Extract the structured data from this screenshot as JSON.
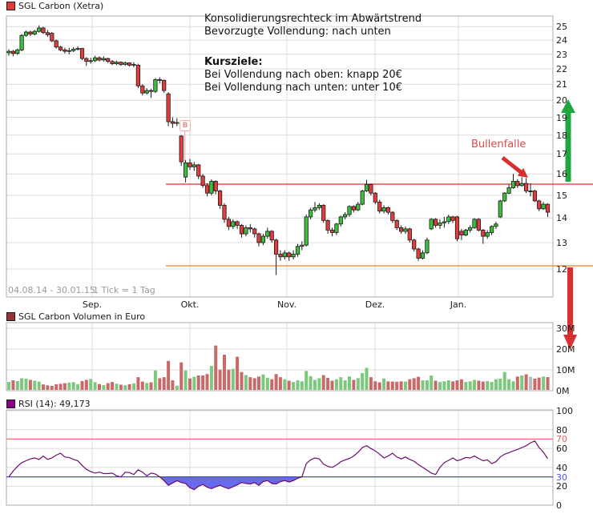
{
  "window": {
    "title": "SGL Carbon (Xetra)"
  },
  "price_panel": {
    "legend_label": "SGL Carbon (Xetra)",
    "annotation": {
      "line1": "Konsolidierungsrechteck im Abwärtstrend",
      "line2": "Bevorzugte Vollendung: nach unten",
      "heading": "Kursziele:",
      "target_up": "Bei Vollendung nach oben: knapp 20€",
      "target_down": "Bei Vollendung nach unten: unter 10€"
    },
    "bullenfalle_label": "Bullenfalle",
    "b_marker_label": "B",
    "date_range": "04.08.14 - 30.01.15",
    "tick_info": "1 Tick = 1 Tag",
    "y_ticks": [
      25,
      24,
      23,
      22,
      21,
      20,
      19,
      18,
      17,
      16,
      15,
      14,
      13,
      12
    ]
  },
  "volume_panel": {
    "legend_label": "SGL Carbon Volumen in Euro",
    "y_ticks": [
      {
        "label": "30M",
        "value": 30
      },
      {
        "label": "20M",
        "value": 20
      },
      {
        "label": "10M",
        "value": 10
      },
      {
        "label": "0M",
        "value": 0
      }
    ]
  },
  "rsi_panel": {
    "legend_label": "RSI (14): 49,173",
    "y_ticks": [
      100,
      80,
      70,
      60,
      40,
      30,
      20,
      0
    ]
  },
  "x_axis": {
    "months": [
      "Sep.",
      "Okt.",
      "Nov.",
      "Dez.",
      "Jan."
    ]
  },
  "colors": {
    "candle_up": "#3DBE3D",
    "candle_down": "#E23D3D",
    "candle_border": "#1a1a1a",
    "wick": "#1a1a1a",
    "vol_up": "#7CC87C",
    "vol_down": "#C96A6A",
    "vol_neutral": "#BBBBBB",
    "legend_price_swatch": "#E13B3B",
    "legend_vol_swatch": "#993333",
    "legend_rsi_swatch": "#8B008B",
    "rsi_line": "#6B0D6B",
    "rsi_fill": "#6A6AEE",
    "rsi_overbought_line": "#EE7070",
    "rsi_oversold_line": "#4747E0",
    "rsi_tick_70": "#E86060",
    "rsi_tick_30": "#5050E8",
    "resistance_line": "#D93030",
    "support_line": "#F08020",
    "arrow_up": "#1EA73E",
    "arrow_down": "#D83030",
    "annotation_arrow": "#D83030",
    "grid": "#DCDCDC",
    "panel_border": "#ADADAD",
    "b_marker_pink": "#EFA9A9"
  },
  "chart_data": {
    "type": "candlestick+volume+rsi",
    "instrument": "SGL Carbon (Xetra)",
    "period": {
      "start": "04.08.14",
      "end": "30.01.15",
      "interval": "1 Tag"
    },
    "price": {
      "scale": "log",
      "ylim": [
        11.5,
        25.5
      ],
      "resistance_level": 15.5,
      "support_level": 12.1,
      "low_extreme": 11.78,
      "ohlcv_order": [
        "open",
        "high",
        "low",
        "close",
        "volume_mio_eur"
      ],
      "candles": [
        [
          23.1,
          23.35,
          22.9,
          23.2,
          4.2
        ],
        [
          23.2,
          23.3,
          22.85,
          23.05,
          5.0
        ],
        [
          23.05,
          23.4,
          22.95,
          23.3,
          4.6
        ],
        [
          23.3,
          24.45,
          23.2,
          24.35,
          6.0
        ],
        [
          24.35,
          24.7,
          24.25,
          24.6,
          5.8
        ],
        [
          24.6,
          24.7,
          24.3,
          24.45,
          5.2
        ],
        [
          24.45,
          24.75,
          24.35,
          24.65,
          4.8
        ],
        [
          24.65,
          25.1,
          24.55,
          24.9,
          4.4
        ],
        [
          24.9,
          25.0,
          24.45,
          24.55,
          3.0
        ],
        [
          24.55,
          24.75,
          24.25,
          24.4,
          2.6
        ],
        [
          24.5,
          24.6,
          23.85,
          23.95,
          2.3
        ],
        [
          23.95,
          24.05,
          23.4,
          23.5,
          3.1
        ],
        [
          23.5,
          23.6,
          23.2,
          23.3,
          3.3
        ],
        [
          23.3,
          23.45,
          23.05,
          23.2,
          3.6
        ],
        [
          23.2,
          23.45,
          23.0,
          23.25,
          3.9
        ],
        [
          23.25,
          23.5,
          23.15,
          23.35,
          4.1
        ],
        [
          23.35,
          23.55,
          23.25,
          23.4,
          3.2
        ],
        [
          23.4,
          23.45,
          22.6,
          22.7,
          4.6
        ],
        [
          22.7,
          22.8,
          22.2,
          22.5,
          5.2
        ],
        [
          22.5,
          22.75,
          22.35,
          22.55,
          5.6
        ],
        [
          22.55,
          22.9,
          22.45,
          22.75,
          4.1
        ],
        [
          22.75,
          22.85,
          22.5,
          22.6,
          3.2
        ],
        [
          22.6,
          22.85,
          22.5,
          22.7,
          2.7
        ],
        [
          22.7,
          22.75,
          22.4,
          22.5,
          3.6
        ],
        [
          22.5,
          22.6,
          22.25,
          22.35,
          4.2
        ],
        [
          22.35,
          22.55,
          22.25,
          22.45,
          3.4
        ],
        [
          22.45,
          22.5,
          22.2,
          22.3,
          2.9
        ],
        [
          22.3,
          22.5,
          22.2,
          22.4,
          2.6
        ],
        [
          22.4,
          22.45,
          22.15,
          22.25,
          3.1
        ],
        [
          22.25,
          22.45,
          22.1,
          22.3,
          3.5
        ],
        [
          22.25,
          22.35,
          20.75,
          20.9,
          6.5
        ],
        [
          20.9,
          21.0,
          20.3,
          20.45,
          4.4
        ],
        [
          20.45,
          20.75,
          20.35,
          20.6,
          3.7
        ],
        [
          20.6,
          20.7,
          20.15,
          20.55,
          4.0
        ],
        [
          20.55,
          21.4,
          20.45,
          21.3,
          9.7
        ],
        [
          21.3,
          21.45,
          21.05,
          21.25,
          6.0
        ],
        [
          21.25,
          21.3,
          20.45,
          20.6,
          6.5
        ],
        [
          20.4,
          20.5,
          18.5,
          18.75,
          14.3
        ],
        [
          18.75,
          19.0,
          18.4,
          18.65,
          5.0
        ],
        [
          18.65,
          18.95,
          18.5,
          18.7,
          2.4
        ],
        [
          17.95,
          18.0,
          16.4,
          16.6,
          13.6
        ],
        [
          15.85,
          16.7,
          15.6,
          16.55,
          9.7
        ],
        [
          16.55,
          16.75,
          16.2,
          16.35,
          5.9
        ],
        [
          16.35,
          16.6,
          16.15,
          16.45,
          6.7
        ],
        [
          16.45,
          16.5,
          15.75,
          15.9,
          7.3
        ],
        [
          15.9,
          16.0,
          15.35,
          15.45,
          7.3
        ],
        [
          15.45,
          15.55,
          14.95,
          15.1,
          8.0
        ],
        [
          15.1,
          15.75,
          15.0,
          15.65,
          11.9
        ],
        [
          15.65,
          15.7,
          15.05,
          15.2,
          21.7
        ],
        [
          15.2,
          15.25,
          14.4,
          14.55,
          10.1
        ],
        [
          14.55,
          14.65,
          13.8,
          13.95,
          17.3
        ],
        [
          13.95,
          14.05,
          13.5,
          13.65,
          10.1
        ],
        [
          13.65,
          13.95,
          13.55,
          13.85,
          10.5
        ],
        [
          13.85,
          13.9,
          13.55,
          13.7,
          16.3
        ],
        [
          13.7,
          13.75,
          13.2,
          13.35,
          9.0
        ],
        [
          13.35,
          13.7,
          13.25,
          13.6,
          7.5
        ],
        [
          13.6,
          13.75,
          13.4,
          13.55,
          6.5
        ],
        [
          13.55,
          13.6,
          13.2,
          13.35,
          6.0
        ],
        [
          13.35,
          13.4,
          12.85,
          13.0,
          6.8
        ],
        [
          13.0,
          13.35,
          12.9,
          13.25,
          7.8
        ],
        [
          13.25,
          13.6,
          13.15,
          13.45,
          6.2
        ],
        [
          13.45,
          13.5,
          13.0,
          13.1,
          5.5
        ],
        [
          13.1,
          13.15,
          11.78,
          12.55,
          8.0
        ],
        [
          12.55,
          12.7,
          12.3,
          12.45,
          6.5
        ],
        [
          12.45,
          12.7,
          12.35,
          12.6,
          5.5
        ],
        [
          12.6,
          12.65,
          12.3,
          12.45,
          4.8
        ],
        [
          12.45,
          12.7,
          12.35,
          12.55,
          4.2
        ],
        [
          12.55,
          12.95,
          12.45,
          12.85,
          5.0
        ],
        [
          12.85,
          13.05,
          12.7,
          12.9,
          4.5
        ],
        [
          12.9,
          14.15,
          12.85,
          14.05,
          9.5
        ],
        [
          14.05,
          14.45,
          13.95,
          14.35,
          7.0
        ],
        [
          14.35,
          14.7,
          14.25,
          14.45,
          5.2
        ],
        [
          14.45,
          14.65,
          14.35,
          14.55,
          6.0
        ],
        [
          14.55,
          14.6,
          13.8,
          13.9,
          7.5
        ],
        [
          13.9,
          13.95,
          13.35,
          13.5,
          6.2
        ],
        [
          13.5,
          13.6,
          13.25,
          13.4,
          4.8
        ],
        [
          13.4,
          13.8,
          13.3,
          13.75,
          5.5
        ],
        [
          13.75,
          14.1,
          13.65,
          14.05,
          6.5
        ],
        [
          14.05,
          14.25,
          13.95,
          14.15,
          5.0
        ],
        [
          14.15,
          14.55,
          14.05,
          14.5,
          6.8
        ],
        [
          14.5,
          14.55,
          14.25,
          14.35,
          5.2
        ],
        [
          14.35,
          14.7,
          14.3,
          14.6,
          6.0
        ],
        [
          14.6,
          15.25,
          14.55,
          15.2,
          8.5
        ],
        [
          15.2,
          15.72,
          15.15,
          15.5,
          11.0
        ],
        [
          15.5,
          15.55,
          15.0,
          15.1,
          6.5
        ],
        [
          15.1,
          15.15,
          14.6,
          14.7,
          4.5
        ],
        [
          14.7,
          14.8,
          14.2,
          14.3,
          4.0
        ],
        [
          14.3,
          14.55,
          14.2,
          14.45,
          5.9
        ],
        [
          14.45,
          14.5,
          14.15,
          14.25,
          4.5
        ],
        [
          14.25,
          14.3,
          13.8,
          13.9,
          4.4
        ],
        [
          13.9,
          13.95,
          13.5,
          13.6,
          4.3
        ],
        [
          13.6,
          13.7,
          13.35,
          13.45,
          4.5
        ],
        [
          13.45,
          13.65,
          13.35,
          13.55,
          4.4
        ],
        [
          13.55,
          13.6,
          13.0,
          13.1,
          5.5
        ],
        [
          13.1,
          13.15,
          12.65,
          12.75,
          6.0
        ],
        [
          12.75,
          12.8,
          12.3,
          12.4,
          6.7
        ],
        [
          12.4,
          12.7,
          12.35,
          12.6,
          5.0
        ],
        [
          12.6,
          13.2,
          12.55,
          13.1,
          5.0
        ],
        [
          13.55,
          14.0,
          13.5,
          13.95,
          7.3
        ],
        [
          13.95,
          14.0,
          13.6,
          13.7,
          4.8
        ],
        [
          13.7,
          13.95,
          13.55,
          13.8,
          4.2
        ],
        [
          13.8,
          14.05,
          13.6,
          13.85,
          4.5
        ],
        [
          13.85,
          14.15,
          13.75,
          14.05,
          5.0
        ],
        [
          14.05,
          14.1,
          13.8,
          13.9,
          4.5
        ],
        [
          14.05,
          14.1,
          13.05,
          13.15,
          5.0
        ],
        [
          13.45,
          13.55,
          13.1,
          13.3,
          5.5
        ],
        [
          13.3,
          13.55,
          13.25,
          13.5,
          4.2
        ],
        [
          13.5,
          13.7,
          13.4,
          13.6,
          4.5
        ],
        [
          13.6,
          14.0,
          13.55,
          13.95,
          5.2
        ],
        [
          13.95,
          14.0,
          13.45,
          13.5,
          4.8
        ],
        [
          13.5,
          13.55,
          12.95,
          13.25,
          4.4
        ],
        [
          13.25,
          13.5,
          13.15,
          13.4,
          4.6
        ],
        [
          13.4,
          13.7,
          13.3,
          13.65,
          4.2
        ],
        [
          13.65,
          13.85,
          13.55,
          13.75,
          5.5
        ],
        [
          14.05,
          14.8,
          14.0,
          14.75,
          5.8
        ],
        [
          14.75,
          15.15,
          14.7,
          15.1,
          9.0
        ],
        [
          15.1,
          15.5,
          15.05,
          15.35,
          5.5
        ],
        [
          15.35,
          16.0,
          15.3,
          15.65,
          4.5
        ],
        [
          15.65,
          15.75,
          15.35,
          15.45,
          6.8
        ],
        [
          15.45,
          15.85,
          15.4,
          15.55,
          7.3
        ],
        [
          15.55,
          15.8,
          15.1,
          15.2,
          7.9
        ],
        [
          15.2,
          15.55,
          14.95,
          15.2,
          6.7
        ],
        [
          15.2,
          15.25,
          14.7,
          14.75,
          5.8
        ],
        [
          14.75,
          14.8,
          14.3,
          14.4,
          6.3
        ],
        [
          14.4,
          14.7,
          14.35,
          14.6,
          6.8
        ],
        [
          14.6,
          14.65,
          14.05,
          14.25,
          6.5
        ]
      ]
    },
    "volume": {
      "unit": "Mio EUR",
      "ylim": [
        0,
        30
      ]
    },
    "rsi": {
      "period": 14,
      "current_value": 49.173,
      "overbought": 70,
      "oversold": 30,
      "ylim": [
        0,
        100
      ],
      "values": [
        30,
        36,
        41,
        45,
        47,
        49,
        50,
        48.5,
        52,
        48.5,
        50,
        53,
        55,
        51,
        50.5,
        48.5,
        47,
        42,
        38,
        35.5,
        34,
        35,
        33.5,
        33.5,
        34,
        31,
        30,
        35,
        34.5,
        32.5,
        37.5,
        35,
        31,
        34,
        33,
        30,
        26,
        21,
        23.5,
        26,
        24,
        23,
        18.5,
        16.5,
        20,
        22,
        19,
        17.5,
        19.5,
        21,
        19,
        17.5,
        19.5,
        21.5,
        24,
        23,
        22.5,
        24,
        21,
        25,
        26,
        23,
        22.5,
        25,
        26,
        24.5,
        26,
        28.5,
        30,
        44,
        48,
        50,
        49,
        43.5,
        41,
        40,
        42.5,
        46,
        48,
        49.5,
        52,
        56,
        61,
        63,
        60,
        57.5,
        54,
        50,
        52,
        55,
        51,
        49,
        51,
        48.5,
        46.5,
        43,
        40,
        37,
        34,
        32.5,
        40,
        45,
        47.5,
        50,
        47,
        48.5,
        50.5,
        50,
        52,
        49.5,
        47,
        48,
        44,
        46,
        51,
        54,
        55.5,
        57.5,
        59,
        61,
        63,
        66,
        68,
        61,
        56,
        49.2
      ]
    }
  }
}
